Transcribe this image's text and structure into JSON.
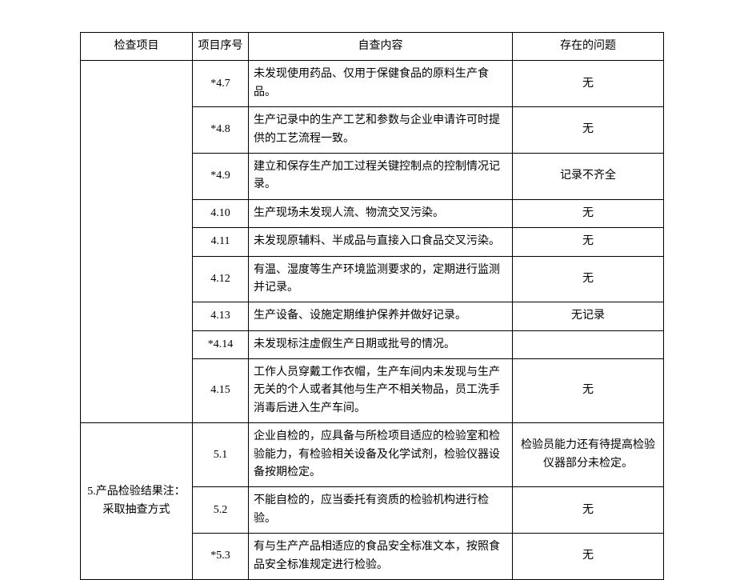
{
  "header": {
    "col1": "检查项目",
    "col2": "项目序号",
    "col3": "自查内容",
    "col4": "存在的问题"
  },
  "group1": {
    "label": "",
    "rows": [
      {
        "num": "*4.7",
        "content": "未发现使用药品、仅用于保健食品的原料生产食品。",
        "issue": "无"
      },
      {
        "num": "*4.8",
        "content": "生产记录中的生产工艺和参数与企业申请许可时提供的工艺流程一致。",
        "issue": "无"
      },
      {
        "num": "*4.9",
        "content": "建立和保存生产加工过程关键控制点的控制情况记录。",
        "issue": "记录不齐全"
      },
      {
        "num": "4.10",
        "content": "生产现场未发现人流、物流交叉污染。",
        "issue": "无"
      },
      {
        "num": "4.11",
        "content": "未发现原辅料、半成品与直接入口食品交叉污染。",
        "issue": "无"
      },
      {
        "num": "4.12",
        "content": "有温、湿度等生产环境监测要求的，定期进行监测并记录。",
        "issue": "无"
      },
      {
        "num": "4.13",
        "content": "生产设备、设施定期维护保养并做好记录。",
        "issue": "无记录"
      },
      {
        "num": "*4.14",
        "content": "未发现标注虚假生产日期或批号的情况。",
        "issue": ""
      },
      {
        "num": "4.15",
        "content": "工作人员穿戴工作衣帽，生产车间内未发现与生产无关的个人或者其他与生产不相关物品，员工洗手消毒后进入生产车间。",
        "issue": "无"
      }
    ]
  },
  "group2": {
    "label": "5.产品检验结果注：采取抽查方式",
    "rows": [
      {
        "num": "5.1",
        "content": "企业自检的，应具备与所检项目适应的检验室和检验能力，有检验相关设备及化学试剂，检验仪器设备按期检定。",
        "issue": "检验员能力还有待提高检验仪器部分未检定。"
      },
      {
        "num": "5.2",
        "content": "不能自检的，应当委托有资质的检验机构进行检验。",
        "issue": "无"
      },
      {
        "num": "*5.3",
        "content": "有与生产产品相适应的食品安全标准文本，按照食品安全标准规定进行检验。",
        "issue": "无"
      }
    ]
  }
}
